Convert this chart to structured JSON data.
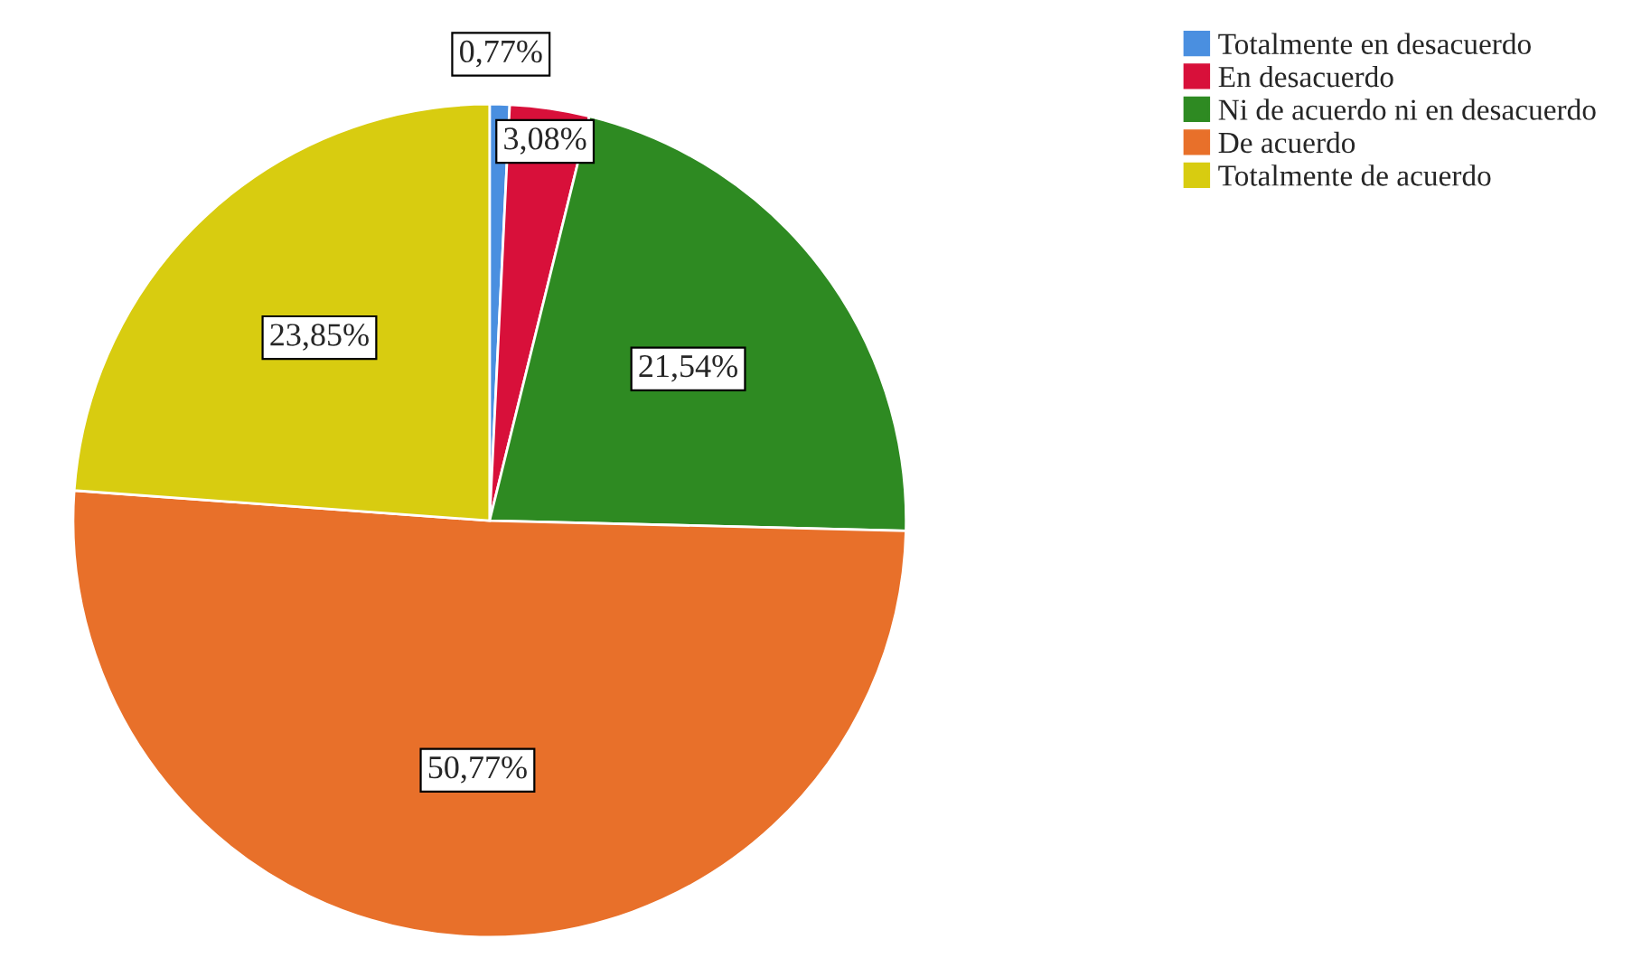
{
  "chart_data": {
    "type": "pie",
    "categories": [
      "Totalmente en desacuerdo",
      "En desacuerdo",
      "Ni de acuerdo ni en desacuerdo",
      "De acuerdo",
      "Totalmente de acuerdo"
    ],
    "values": [
      0.77,
      3.08,
      21.54,
      50.77,
      23.85
    ],
    "value_labels": [
      "0,77%",
      "3,08%",
      "21,54%",
      "50,77%",
      "23,85%"
    ],
    "colors": [
      "#4a8fe0",
      "#d8103a",
      "#2e8a22",
      "#e8702a",
      "#d8cc10"
    ],
    "legend": "top right"
  }
}
